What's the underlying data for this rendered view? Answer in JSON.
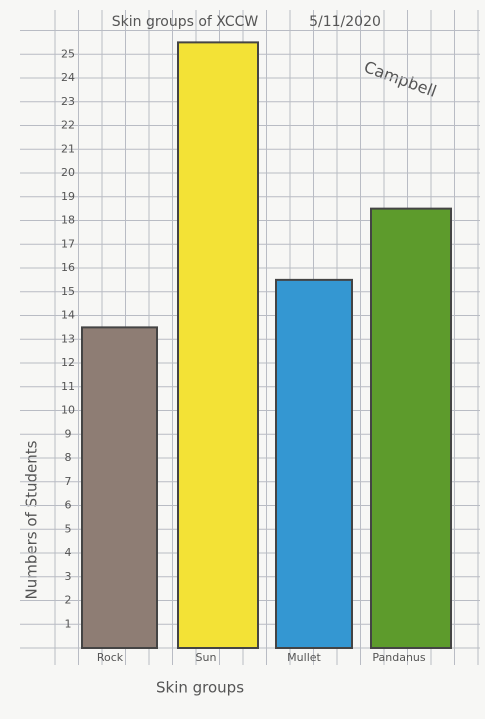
{
  "chart_data": {
    "type": "bar",
    "title": "Skin groups of XCCW",
    "date": "5/11/2020",
    "author": "Campbell",
    "x_label": "Skin groups",
    "y_label": "Numbers of Students",
    "categories": [
      "Rock",
      "Sun",
      "Mullet",
      "Pandanus"
    ],
    "values": [
      13.5,
      25.5,
      15.5,
      18.5
    ],
    "colors": [
      "#8e7d74",
      "#f3e236",
      "#3497d2",
      "#5d9b2c"
    ],
    "ylim": [
      0,
      26
    ],
    "yticks": [
      1,
      2,
      3,
      4,
      5,
      6,
      7,
      8,
      9,
      10,
      11,
      12,
      13,
      14,
      15,
      16,
      17,
      18,
      19,
      20,
      21,
      22,
      23,
      24,
      25
    ],
    "grid": true
  }
}
